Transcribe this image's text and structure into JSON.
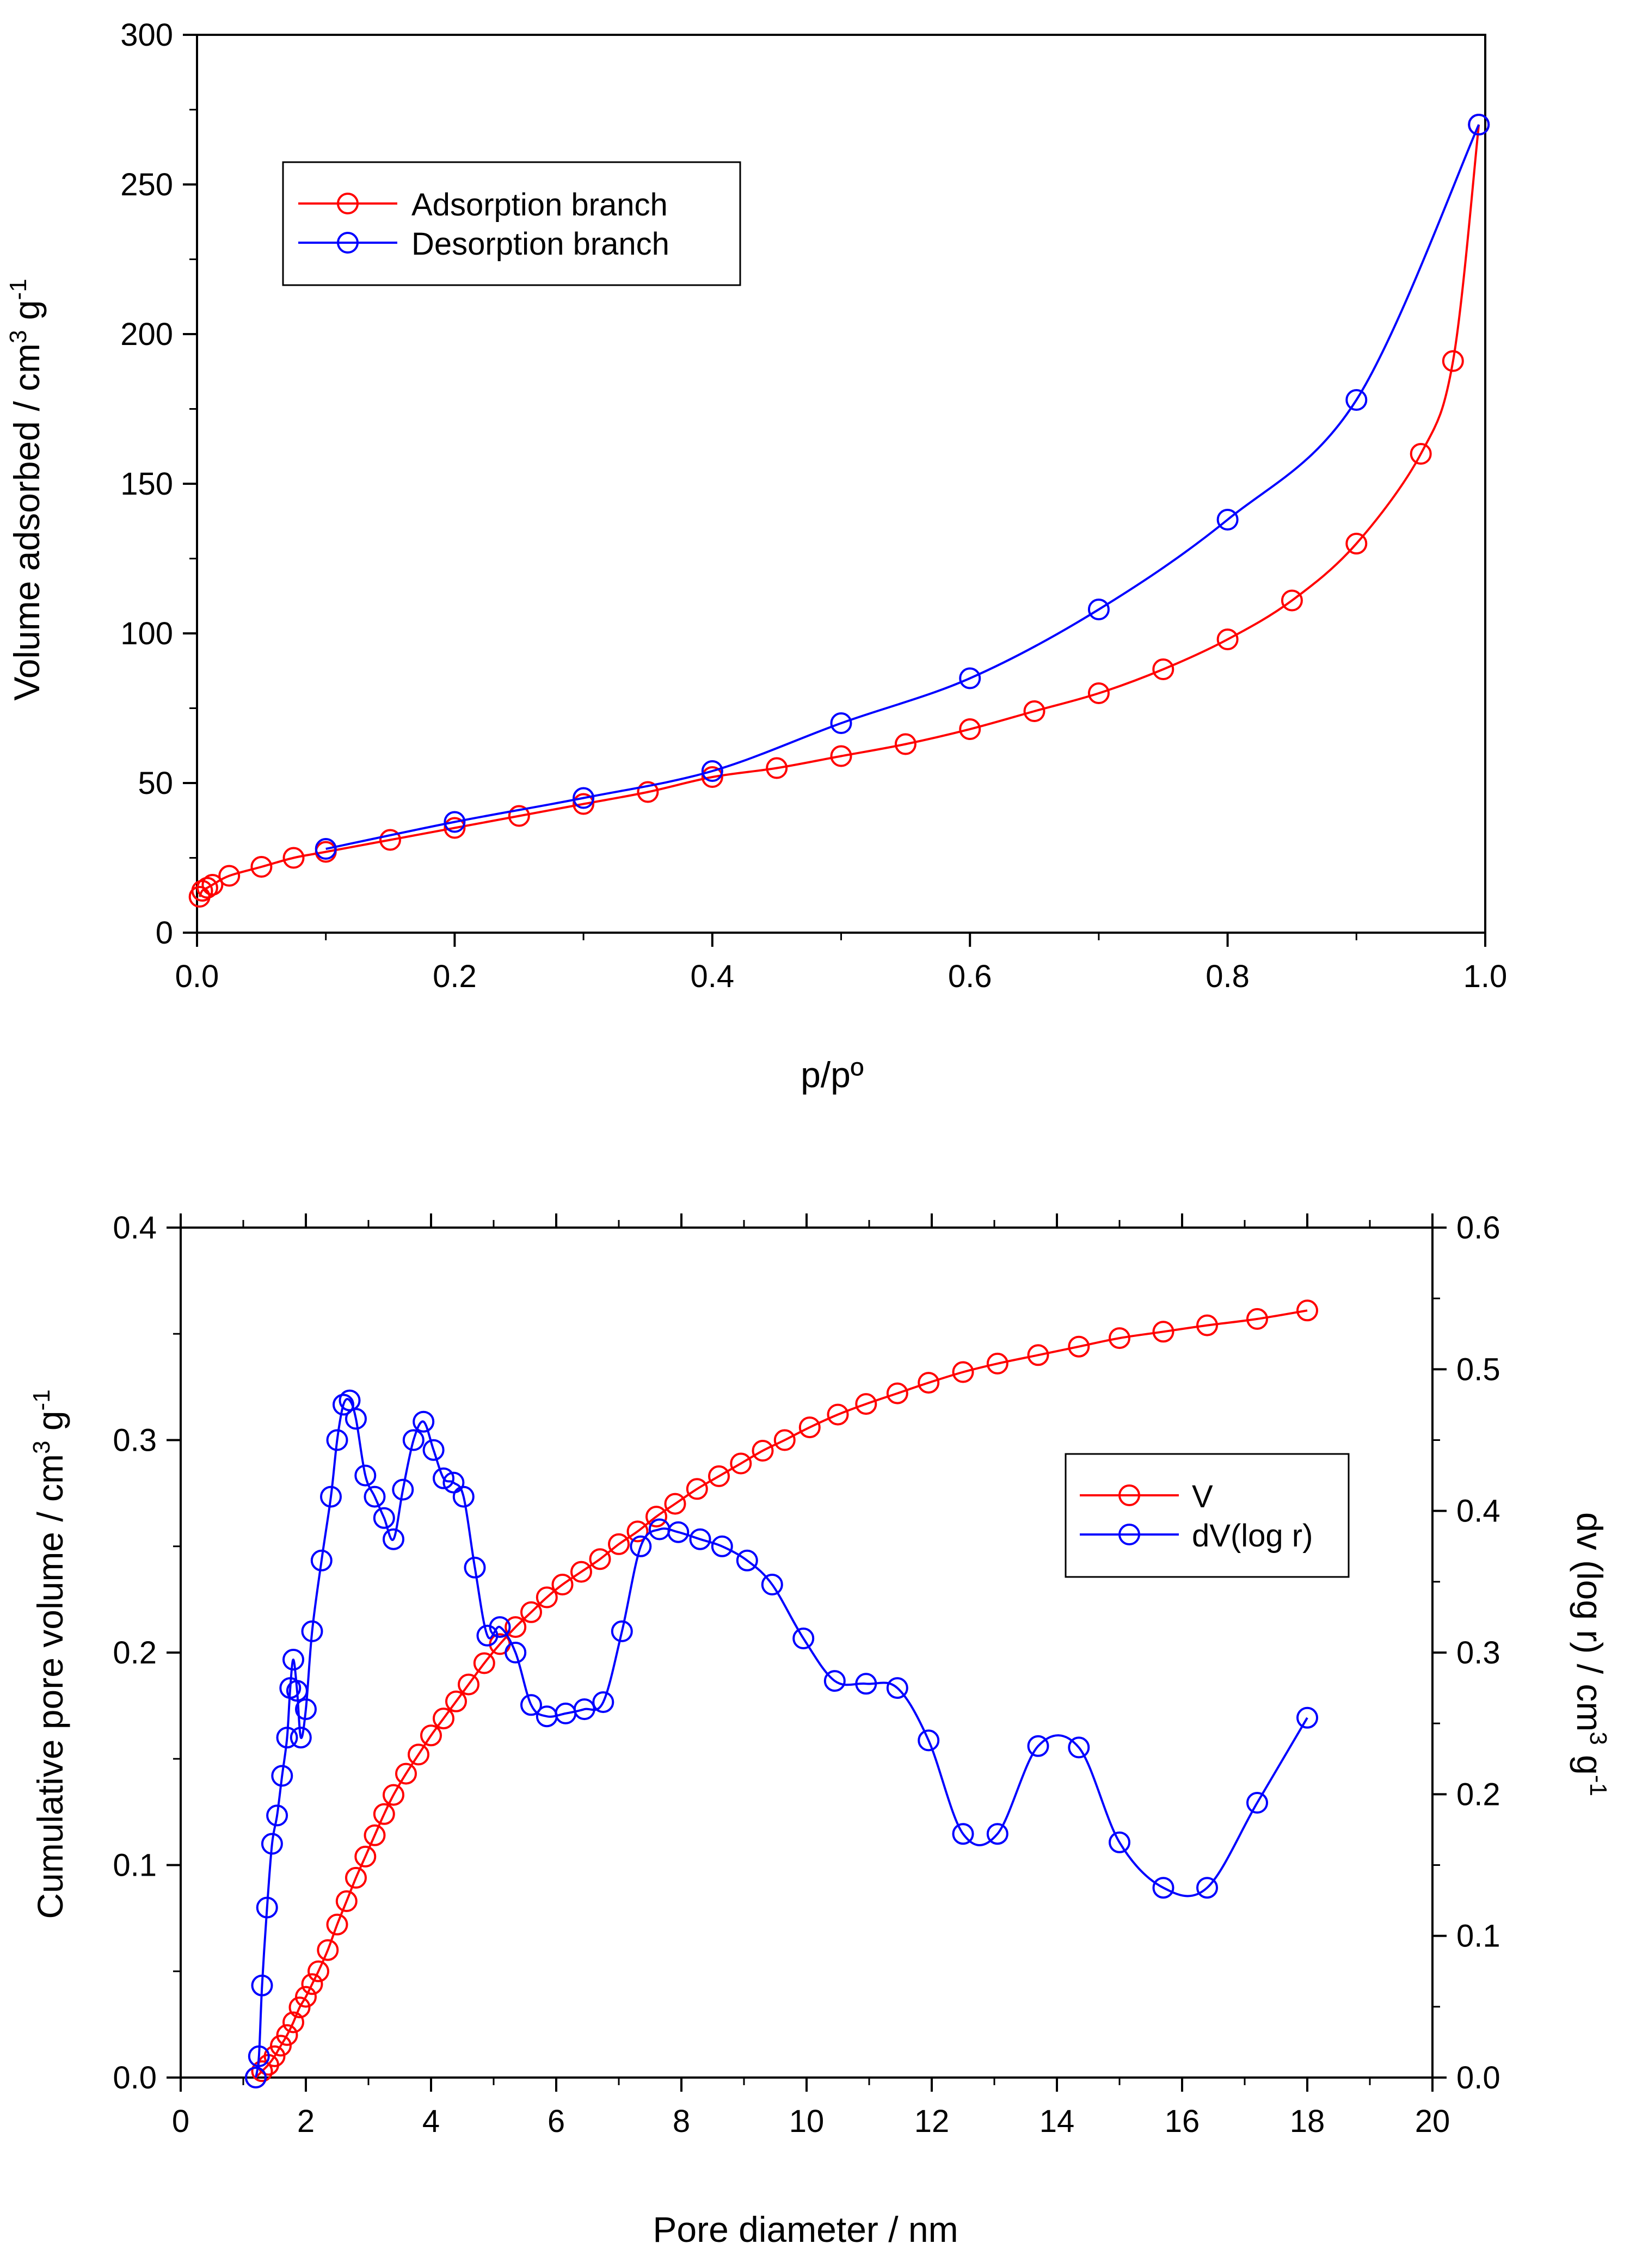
{
  "chart_data": [
    {
      "type": "line",
      "xlabel": "p/pº",
      "ylabel": "Volume adsorbed / cm",
      "ylabel_sup1": "3",
      "ylabel_mid": " g",
      "ylabel_sup2": "-1",
      "xlim": [
        0,
        1.0
      ],
      "ylim": [
        0,
        300
      ],
      "xticks": [
        "0.0",
        "0.2",
        "0.4",
        "0.6",
        "0.8",
        "1.0"
      ],
      "yticks": [
        "0",
        "50",
        "100",
        "150",
        "200",
        "250",
        "300"
      ],
      "legend_position": "top-left",
      "series": [
        {
          "name": "Adsorption branch",
          "color": "#ff0000",
          "x": [
            0.002,
            0.004,
            0.008,
            0.012,
            0.025,
            0.05,
            0.075,
            0.1,
            0.15,
            0.2,
            0.25,
            0.3,
            0.35,
            0.4,
            0.45,
            0.5,
            0.55,
            0.6,
            0.65,
            0.7,
            0.75,
            0.8,
            0.85,
            0.9,
            0.95,
            0.975,
            0.995
          ],
          "y": [
            12,
            14,
            15,
            16,
            19,
            22,
            25,
            27,
            31,
            35,
            39,
            43,
            47,
            52,
            55,
            59,
            63,
            68,
            74,
            80,
            88,
            98,
            111,
            130,
            160,
            191,
            270
          ]
        },
        {
          "name": "Desorption branch",
          "color": "#0000ff",
          "x": [
            0.995,
            0.9,
            0.8,
            0.7,
            0.6,
            0.5,
            0.4,
            0.3,
            0.2,
            0.1
          ],
          "y": [
            270,
            178,
            138,
            108,
            85,
            70,
            54,
            45,
            37,
            28
          ]
        }
      ]
    },
    {
      "type": "line",
      "xlabel": "Pore diameter / nm",
      "ylabel": "Cumulative pore volume / cm",
      "ylabel_sup1": "3",
      "ylabel_mid": " g",
      "ylabel_sup2": "-1",
      "y2label": "dv (log r) / cm",
      "y2label_sup1": "3",
      "y2label_mid": " g",
      "y2label_sup2": "-1",
      "xlim": [
        0,
        20
      ],
      "ylim": [
        0,
        0.4
      ],
      "y2lim": [
        0,
        0.6
      ],
      "xticks": [
        "0",
        "2",
        "4",
        "6",
        "8",
        "10",
        "12",
        "14",
        "16",
        "18",
        "20"
      ],
      "yticks": [
        "0.0",
        "0.1",
        "0.2",
        "0.3",
        "0.4"
      ],
      "y2ticks": [
        "0.0",
        "0.1",
        "0.2",
        "0.3",
        "0.4",
        "0.5",
        "0.6"
      ],
      "legend_position": "middle-right",
      "series": [
        {
          "name": "V",
          "axis": "left",
          "color": "#ff0000",
          "x": [
            1.2,
            1.3,
            1.4,
            1.5,
            1.6,
            1.7,
            1.8,
            1.9,
            2.0,
            2.1,
            2.2,
            2.35,
            2.5,
            2.65,
            2.8,
            2.95,
            3.1,
            3.25,
            3.4,
            3.6,
            3.8,
            4.0,
            4.2,
            4.4,
            4.6,
            4.85,
            5.1,
            5.35,
            5.6,
            5.85,
            6.1,
            6.4,
            6.7,
            7.0,
            7.3,
            7.6,
            7.9,
            8.25,
            8.6,
            8.95,
            9.3,
            9.65,
            10.05,
            10.5,
            10.95,
            11.45,
            11.95,
            12.5,
            13.05,
            13.7,
            14.35,
            15.0,
            15.7,
            16.4,
            17.2,
            18.0
          ],
          "y": [
            0.0,
            0.003,
            0.006,
            0.01,
            0.015,
            0.02,
            0.026,
            0.033,
            0.038,
            0.044,
            0.05,
            0.06,
            0.072,
            0.083,
            0.094,
            0.104,
            0.114,
            0.124,
            0.133,
            0.143,
            0.152,
            0.161,
            0.169,
            0.177,
            0.185,
            0.195,
            0.204,
            0.212,
            0.219,
            0.226,
            0.232,
            0.238,
            0.244,
            0.251,
            0.257,
            0.264,
            0.27,
            0.277,
            0.283,
            0.289,
            0.295,
            0.3,
            0.306,
            0.312,
            0.317,
            0.322,
            0.327,
            0.332,
            0.336,
            0.34,
            0.344,
            0.348,
            0.351,
            0.354,
            0.357,
            0.361
          ]
        },
        {
          "name": "dV(log r)",
          "axis": "right",
          "color": "#0000ff",
          "x": [
            1.2,
            1.25,
            1.3,
            1.38,
            1.46,
            1.54,
            1.62,
            1.7,
            1.75,
            1.8,
            1.86,
            1.92,
            2.0,
            2.1,
            2.25,
            2.4,
            2.5,
            2.6,
            2.7,
            2.8,
            2.95,
            3.1,
            3.25,
            3.4,
            3.55,
            3.72,
            3.88,
            4.04,
            4.2,
            4.36,
            4.52,
            4.7,
            4.9,
            5.1,
            5.35,
            5.6,
            5.85,
            6.15,
            6.45,
            6.75,
            7.05,
            7.35,
            7.65,
            7.95,
            8.3,
            8.65,
            9.05,
            9.45,
            9.95,
            10.45,
            10.95,
            11.45,
            11.95,
            12.5,
            13.05,
            13.7,
            14.35,
            15.0,
            15.7,
            16.4,
            17.2,
            18.0
          ],
          "y": [
            0.0,
            0.015,
            0.065,
            0.12,
            0.165,
            0.185,
            0.213,
            0.24,
            0.275,
            0.295,
            0.273,
            0.24,
            0.26,
            0.315,
            0.365,
            0.41,
            0.45,
            0.475,
            0.478,
            0.465,
            0.425,
            0.41,
            0.395,
            0.38,
            0.415,
            0.45,
            0.463,
            0.443,
            0.423,
            0.42,
            0.41,
            0.36,
            0.312,
            0.318,
            0.3,
            0.263,
            0.255,
            0.257,
            0.26,
            0.265,
            0.315,
            0.375,
            0.387,
            0.385,
            0.38,
            0.375,
            0.365,
            0.348,
            0.31,
            0.28,
            0.278,
            0.275,
            0.238,
            0.172,
            0.172,
            0.234,
            0.233,
            0.166,
            0.134,
            0.134,
            0.194,
            0.254
          ]
        }
      ]
    }
  ]
}
